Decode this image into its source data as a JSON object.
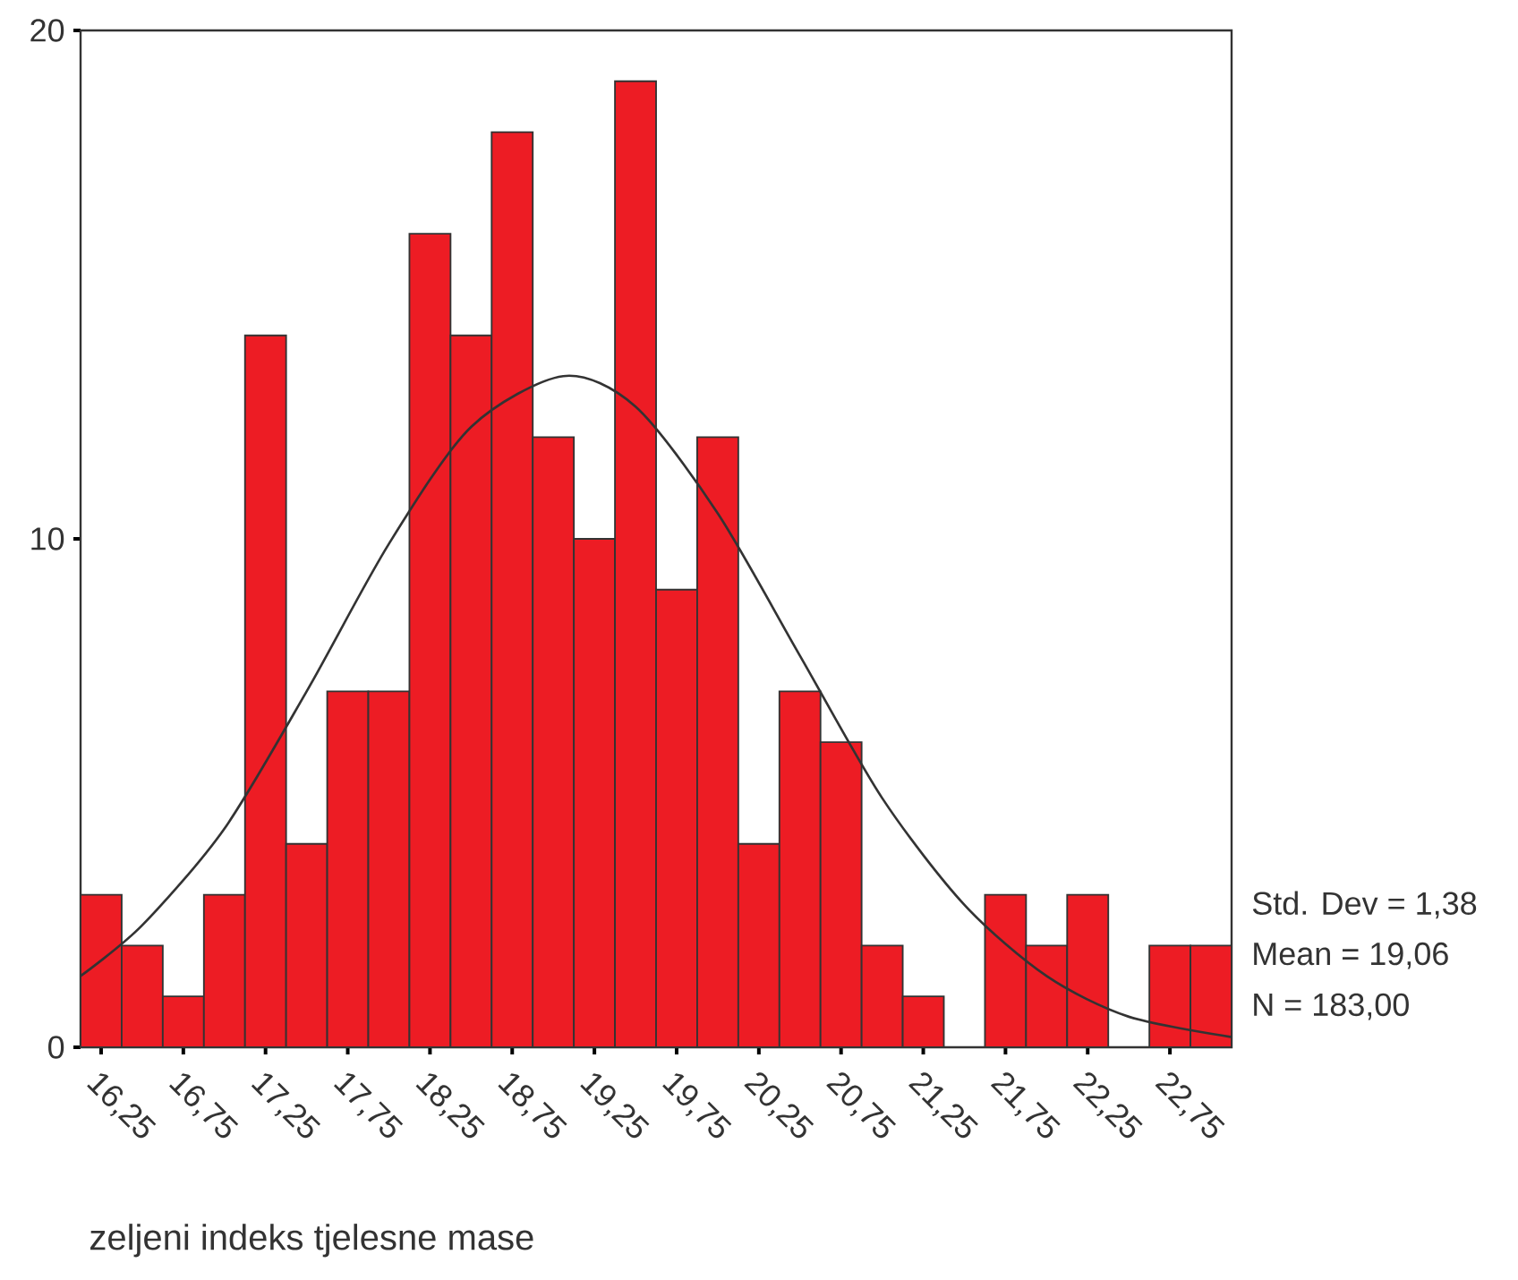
{
  "chart_data": {
    "type": "histogram",
    "xlabel": "zeljeni indeks tjelesne mase",
    "bins": [
      16.125,
      16.375,
      16.625,
      16.875,
      17.125,
      17.375,
      17.625,
      17.875,
      18.125,
      18.375,
      18.625,
      18.875,
      19.125,
      19.375,
      19.625,
      19.875,
      20.125,
      20.375,
      20.625,
      20.875,
      21.125,
      21.375,
      21.625,
      21.875,
      22.125,
      22.375,
      22.625,
      22.875,
      23.125
    ],
    "values": [
      3,
      2,
      1,
      3,
      14,
      4,
      7,
      7,
      16,
      14,
      18,
      12,
      10,
      19,
      9,
      12,
      4,
      7,
      6,
      2,
      1,
      0,
      3,
      2,
      3,
      0,
      2,
      2
    ],
    "color": "#ed1c24",
    "series": [
      {
        "type": "line",
        "color": "#333333",
        "marker": "none",
        "x": [
          16.125,
          16.5,
          17.0,
          17.5,
          18.0,
          18.5,
          19.06,
          19.5,
          20.0,
          20.5,
          21.0,
          21.5,
          22.0,
          22.5,
          23.125
        ],
        "values": [
          1.4,
          2.4,
          4.3,
          7.0,
          9.9,
          12.2,
          13.2,
          12.6,
          10.5,
          7.7,
          4.9,
          2.8,
          1.4,
          0.6,
          0.2
        ]
      }
    ],
    "xlim": [
      16.125,
      23.125
    ],
    "xticks": [
      {
        "value": 16.25,
        "label": "16,25"
      },
      {
        "value": 16.75,
        "label": "16,75"
      },
      {
        "value": 17.25,
        "label": "17,25"
      },
      {
        "value": 17.75,
        "label": "17,75"
      },
      {
        "value": 18.25,
        "label": "18,25"
      },
      {
        "value": 18.75,
        "label": "18,75"
      },
      {
        "value": 19.25,
        "label": "19,25"
      },
      {
        "value": 19.75,
        "label": "19,75"
      },
      {
        "value": 20.25,
        "label": "20,25"
      },
      {
        "value": 20.75,
        "label": "20,75"
      },
      {
        "value": 21.25,
        "label": "21,25"
      },
      {
        "value": 21.75,
        "label": "21,75"
      },
      {
        "value": 22.25,
        "label": "22,25"
      },
      {
        "value": 22.75,
        "label": "22,75"
      }
    ],
    "ylim": [
      0,
      20
    ],
    "yticks": [
      0,
      10,
      20
    ],
    "annotations": [
      "Std. Dev = 1,38",
      "Mean = 19,06",
      "N = 183,00"
    ]
  }
}
